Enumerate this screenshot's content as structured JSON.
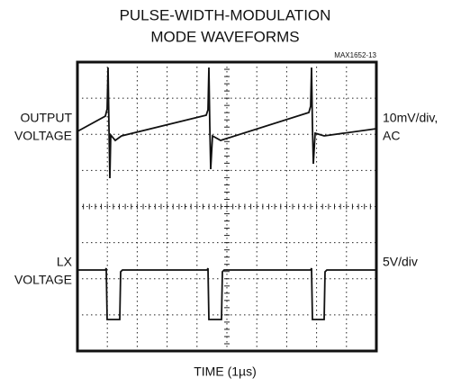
{
  "chart_data": {
    "type": "scope",
    "title": [
      "PULSE-WIDTH-MODULATION",
      "MODE WAVEFORMS"
    ],
    "figure_id": "MAX1652-13",
    "channels": [
      {
        "name": [
          "OUTPUT",
          "VOLTAGE"
        ],
        "scale": [
          "10mV/div,",
          "AC"
        ]
      },
      {
        "name": [
          "LX",
          "VOLTAGE"
        ],
        "scale": [
          "5V/div"
        ]
      }
    ],
    "x_label": "TIME (1µs)"
  }
}
